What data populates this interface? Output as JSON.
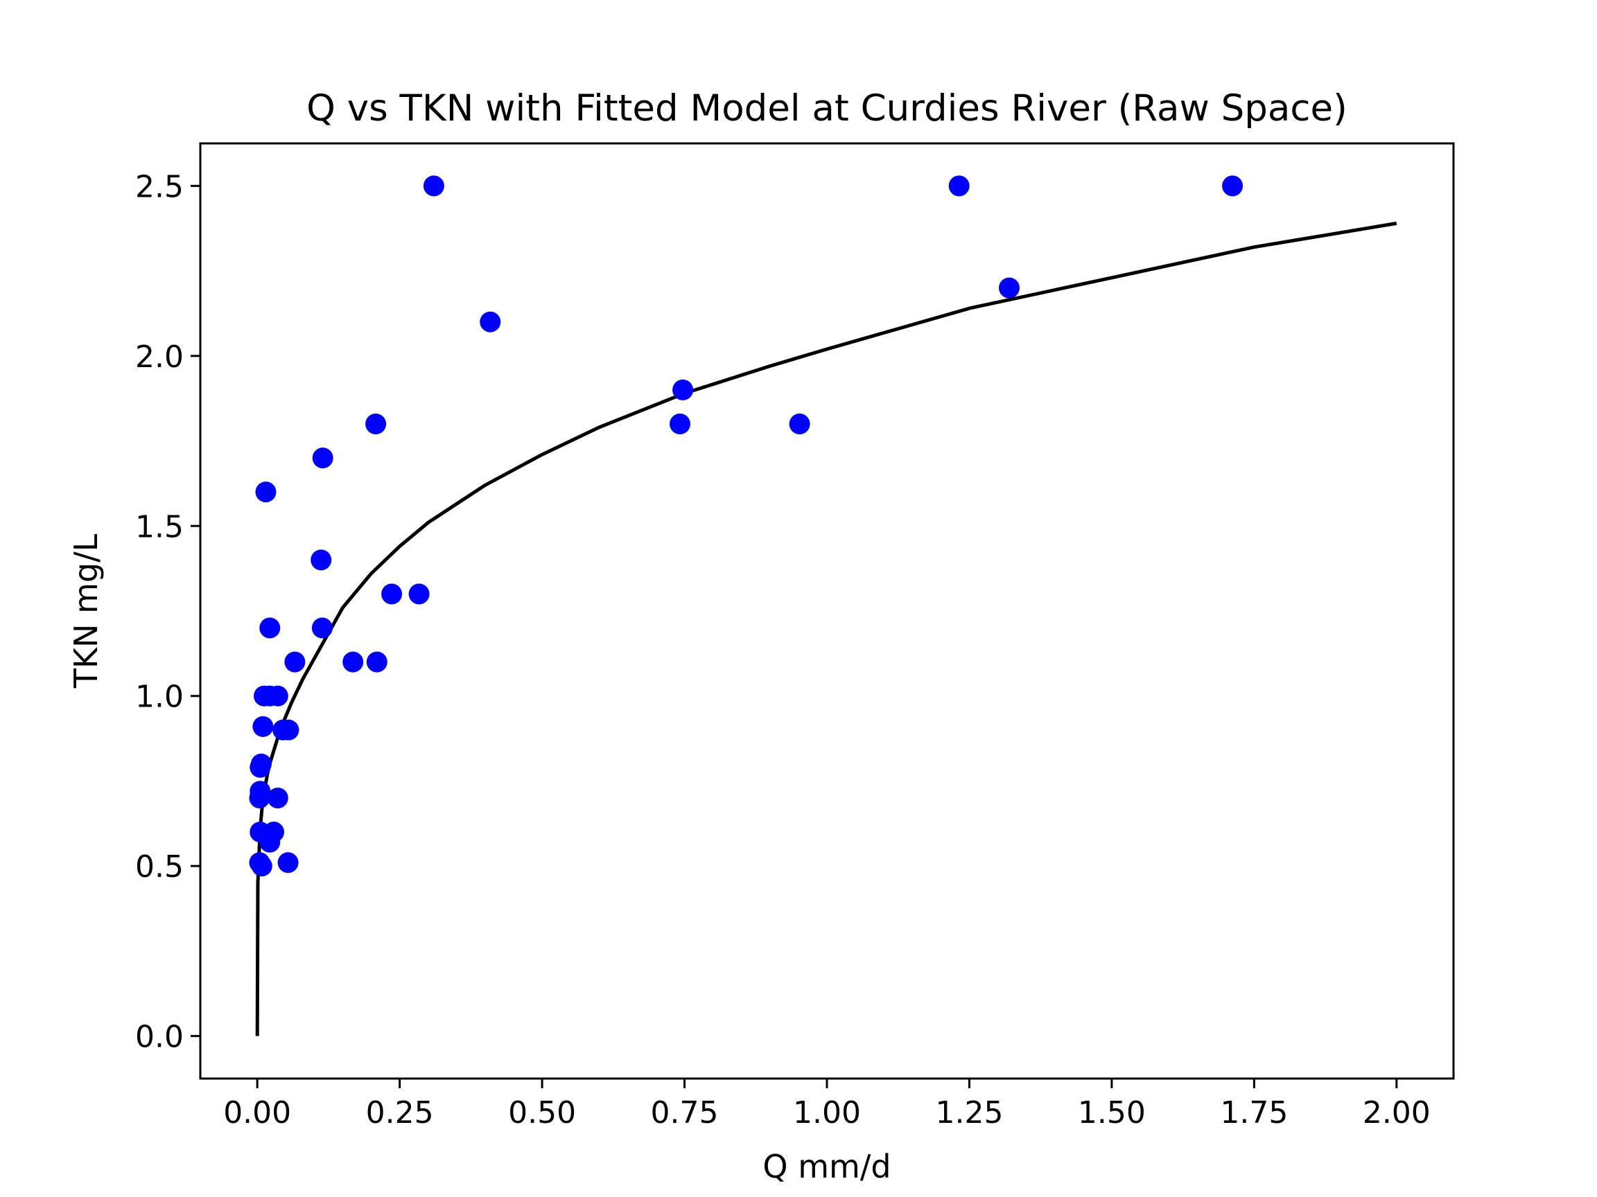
{
  "chart_data": {
    "type": "scatter",
    "title": "Q vs TKN with Fitted Model at Curdies River (Raw Space)",
    "xlabel": "Q mm/d",
    "ylabel": "TKN mg/L",
    "xlim": [
      -0.1,
      2.1
    ],
    "ylim": [
      -0.125,
      2.625
    ],
    "x_ticks": [
      0.0,
      0.25,
      0.5,
      0.75,
      1.0,
      1.25,
      1.5,
      1.75,
      2.0
    ],
    "x_tick_labels": [
      "0.00",
      "0.25",
      "0.50",
      "0.75",
      "1.00",
      "1.25",
      "1.50",
      "1.75",
      "2.00"
    ],
    "y_ticks": [
      0.0,
      0.5,
      1.0,
      1.5,
      2.0,
      2.5
    ],
    "y_tick_labels": [
      "0.0",
      "0.5",
      "1.0",
      "1.5",
      "2.0",
      "2.5"
    ],
    "grid": false,
    "legend": "none",
    "series": [
      {
        "kind": "scatter",
        "color": "#0000ff",
        "points": [
          {
            "x": 0.31,
            "y": 2.5
          },
          {
            "x": 1.232,
            "y": 2.5
          },
          {
            "x": 1.712,
            "y": 2.5
          },
          {
            "x": 1.32,
            "y": 2.2
          },
          {
            "x": 0.409,
            "y": 2.1
          },
          {
            "x": 0.747,
            "y": 1.9
          },
          {
            "x": 0.742,
            "y": 1.8
          },
          {
            "x": 0.952,
            "y": 1.8
          },
          {
            "x": 0.208,
            "y": 1.8
          },
          {
            "x": 0.115,
            "y": 1.7
          },
          {
            "x": 0.015,
            "y": 1.6
          },
          {
            "x": 0.112,
            "y": 1.4
          },
          {
            "x": 0.236,
            "y": 1.3
          },
          {
            "x": 0.284,
            "y": 1.3
          },
          {
            "x": 0.022,
            "y": 1.2
          },
          {
            "x": 0.114,
            "y": 1.2
          },
          {
            "x": 0.066,
            "y": 1.1
          },
          {
            "x": 0.168,
            "y": 1.1
          },
          {
            "x": 0.21,
            "y": 1.1
          },
          {
            "x": 0.012,
            "y": 1.0
          },
          {
            "x": 0.022,
            "y": 1.0
          },
          {
            "x": 0.036,
            "y": 1.0
          },
          {
            "x": 0.01,
            "y": 0.91
          },
          {
            "x": 0.045,
            "y": 0.9
          },
          {
            "x": 0.055,
            "y": 0.9
          },
          {
            "x": 0.005,
            "y": 0.79
          },
          {
            "x": 0.007,
            "y": 0.8
          },
          {
            "x": 0.005,
            "y": 0.72
          },
          {
            "x": 0.004,
            "y": 0.7
          },
          {
            "x": 0.036,
            "y": 0.7
          },
          {
            "x": 0.005,
            "y": 0.6
          },
          {
            "x": 0.029,
            "y": 0.6
          },
          {
            "x": 0.022,
            "y": 0.57
          },
          {
            "x": 0.004,
            "y": 0.51
          },
          {
            "x": 0.008,
            "y": 0.5
          },
          {
            "x": 0.054,
            "y": 0.51
          }
        ]
      },
      {
        "kind": "line",
        "color": "#000000",
        "points": [
          {
            "x": 0.0,
            "y": 0.0
          },
          {
            "x": 0.001,
            "y": 0.45
          },
          {
            "x": 0.005,
            "y": 0.61
          },
          {
            "x": 0.01,
            "y": 0.7
          },
          {
            "x": 0.02,
            "y": 0.79
          },
          {
            "x": 0.04,
            "y": 0.9
          },
          {
            "x": 0.06,
            "y": 0.98
          },
          {
            "x": 0.08,
            "y": 1.05
          },
          {
            "x": 0.1,
            "y": 1.11
          },
          {
            "x": 0.15,
            "y": 1.26
          },
          {
            "x": 0.2,
            "y": 1.36
          },
          {
            "x": 0.25,
            "y": 1.44
          },
          {
            "x": 0.3,
            "y": 1.51
          },
          {
            "x": 0.4,
            "y": 1.62
          },
          {
            "x": 0.5,
            "y": 1.71
          },
          {
            "x": 0.6,
            "y": 1.79
          },
          {
            "x": 0.75,
            "y": 1.89
          },
          {
            "x": 0.9,
            "y": 1.97
          },
          {
            "x": 1.0,
            "y": 2.02
          },
          {
            "x": 1.25,
            "y": 2.14
          },
          {
            "x": 1.5,
            "y": 2.23
          },
          {
            "x": 1.75,
            "y": 2.32
          },
          {
            "x": 2.0,
            "y": 2.39
          }
        ]
      }
    ]
  }
}
